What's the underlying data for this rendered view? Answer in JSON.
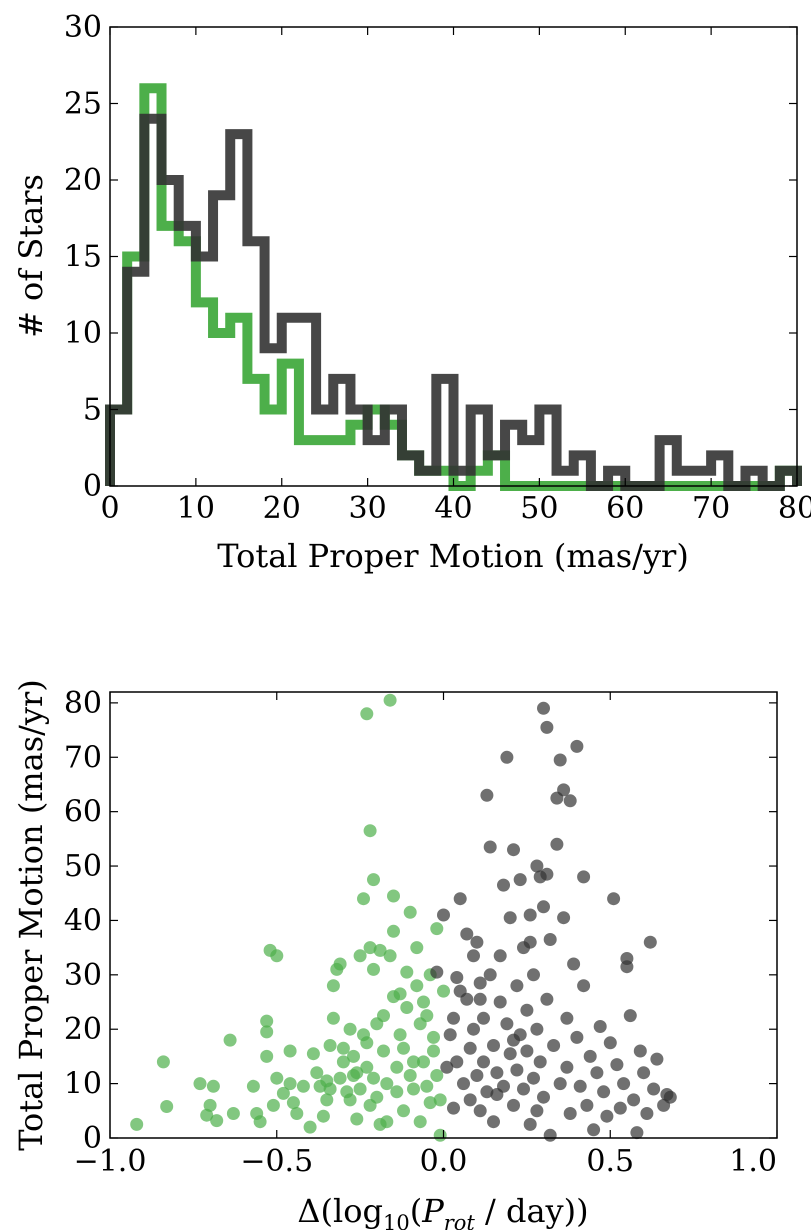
{
  "chart_data": [
    {
      "type": "histogram",
      "xlabel": "Total Proper Motion (mas/yr)",
      "ylabel": "# of Stars",
      "xlim": [
        0,
        80
      ],
      "ylim": [
        0,
        30
      ],
      "xticks": [
        "0",
        "10",
        "20",
        "30",
        "40",
        "50",
        "60",
        "70",
        "80"
      ],
      "yticks": [
        "0",
        "5",
        "10",
        "15",
        "20",
        "25",
        "30"
      ],
      "bin_edges": [
        0,
        2,
        4,
        6,
        8,
        10,
        12,
        14,
        16,
        18,
        20,
        22,
        24,
        26,
        28,
        30,
        32,
        34,
        36,
        38,
        40,
        42,
        44,
        46,
        48,
        50,
        52,
        54,
        56,
        58,
        60,
        62,
        64,
        66,
        68,
        70,
        72,
        74,
        76,
        78,
        80
      ],
      "series": [
        {
          "color": "#4daf4a",
          "alpha": 1.0,
          "values": [
            5,
            15,
            26,
            17,
            16,
            12,
            10,
            11,
            7,
            5,
            8,
            3,
            3,
            3,
            4,
            5,
            4,
            2,
            1,
            1,
            0,
            1,
            2,
            0,
            0,
            0,
            0,
            0,
            0,
            0,
            0,
            0,
            0,
            0,
            0,
            0,
            0,
            0,
            0,
            1
          ]
        },
        {
          "color": "#333333",
          "alpha": 0.9,
          "values": [
            5,
            14,
            24,
            20,
            17,
            15,
            19,
            23,
            16,
            9,
            11,
            11,
            5,
            7,
            5,
            3,
            5,
            2,
            1,
            7,
            1,
            5,
            2,
            4,
            3,
            5,
            1,
            2,
            0,
            1,
            0,
            0,
            3,
            1,
            1,
            2,
            0,
            1,
            0,
            1
          ]
        }
      ]
    },
    {
      "type": "scatter",
      "xlabel_prefix": "Δ(log",
      "xlabel_sub": "10",
      "xlabel_mid": "(",
      "xlabel_p": "P",
      "xlabel_psub": "rot",
      "xlabel_suffix": " / day))",
      "ylabel": "Total Proper Motion (mas/yr)",
      "xlim": [
        -1.0,
        1.0
      ],
      "ylim": [
        0,
        82
      ],
      "xticks": [
        {
          "value": -1.0,
          "label": "−1.0"
        },
        {
          "value": -0.5,
          "label": "−0.5"
        },
        {
          "value": 0.0,
          "label": "0.0"
        },
        {
          "value": 0.5,
          "label": "0.5"
        },
        {
          "value": 1.0,
          "label": "1.0"
        }
      ],
      "yticks": [
        {
          "value": 0,
          "label": "0"
        },
        {
          "value": 10,
          "label": "10"
        },
        {
          "value": 20,
          "label": "20"
        },
        {
          "value": 30,
          "label": "30"
        },
        {
          "value": 40,
          "label": "40"
        },
        {
          "value": 50,
          "label": "50"
        },
        {
          "value": 60,
          "label": "60"
        },
        {
          "value": 70,
          "label": "70"
        },
        {
          "value": 80,
          "label": "80"
        }
      ],
      "series": [
        {
          "color": "#4daf4a",
          "alpha": 0.7,
          "points": [
            [
              -0.92,
              2.5
            ],
            [
              -0.84,
              14
            ],
            [
              -0.83,
              5.8
            ],
            [
              -0.73,
              10
            ],
            [
              -0.71,
              4.2
            ],
            [
              -0.7,
              6
            ],
            [
              -0.69,
              9.5
            ],
            [
              -0.68,
              3.2
            ],
            [
              -0.64,
              18
            ],
            [
              -0.63,
              4.5
            ],
            [
              -0.57,
              9.5
            ],
            [
              -0.56,
              4.5
            ],
            [
              -0.55,
              3
            ],
            [
              -0.53,
              21.5
            ],
            [
              -0.53,
              19.5
            ],
            [
              -0.53,
              15
            ],
            [
              -0.52,
              34.5
            ],
            [
              -0.51,
              6
            ],
            [
              -0.5,
              11
            ],
            [
              -0.5,
              33.5
            ],
            [
              -0.48,
              8.2
            ],
            [
              -0.46,
              16
            ],
            [
              -0.46,
              10
            ],
            [
              -0.45,
              6.5
            ],
            [
              -0.44,
              4.5
            ],
            [
              -0.42,
              9.5
            ],
            [
              -0.4,
              2
            ],
            [
              -0.39,
              15.5
            ],
            [
              -0.38,
              12
            ],
            [
              -0.37,
              9.5
            ],
            [
              -0.36,
              4
            ],
            [
              -0.35,
              7
            ],
            [
              -0.35,
              10.5
            ],
            [
              -0.34,
              17
            ],
            [
              -0.33,
              22
            ],
            [
              -0.33,
              28
            ],
            [
              -0.32,
              31
            ],
            [
              -0.31,
              32
            ],
            [
              -0.31,
              11
            ],
            [
              -0.3,
              14
            ],
            [
              -0.29,
              8.5
            ],
            [
              -0.28,
              20
            ],
            [
              -0.28,
              7
            ],
            [
              -0.27,
              15
            ],
            [
              -0.26,
              3.5
            ],
            [
              -0.26,
              12
            ],
            [
              -0.25,
              33.5
            ],
            [
              -0.25,
              9
            ],
            [
              -0.24,
              44
            ],
            [
              -0.24,
              19
            ],
            [
              -0.23,
              17.5
            ],
            [
              -0.23,
              78
            ],
            [
              -0.23,
              13
            ],
            [
              -0.22,
              6
            ],
            [
              -0.22,
              35
            ],
            [
              -0.22,
              56.5
            ],
            [
              -0.21,
              47.5
            ],
            [
              -0.21,
              31
            ],
            [
              -0.21,
              11
            ],
            [
              -0.2,
              21
            ],
            [
              -0.2,
              7.5
            ],
            [
              -0.19,
              2.5
            ],
            [
              -0.19,
              34.5
            ],
            [
              -0.18,
              16
            ],
            [
              -0.17,
              3
            ],
            [
              -0.17,
              10
            ],
            [
              -0.16,
              33.5
            ],
            [
              -0.16,
              80.5
            ],
            [
              -0.15,
              44.5
            ],
            [
              -0.15,
              38
            ],
            [
              -0.15,
              26
            ],
            [
              -0.14,
              13
            ],
            [
              -0.14,
              8.5
            ],
            [
              -0.13,
              19
            ],
            [
              -0.12,
              5
            ],
            [
              -0.12,
              16.5
            ],
            [
              -0.11,
              30.5
            ],
            [
              -0.11,
              24
            ],
            [
              -0.1,
              41.5
            ],
            [
              -0.1,
              11.5
            ],
            [
              -0.09,
              9
            ],
            [
              -0.08,
              28
            ],
            [
              -0.08,
              35
            ],
            [
              -0.07,
              21
            ],
            [
              -0.07,
              3
            ],
            [
              -0.06,
              14
            ],
            [
              -0.05,
              9.5
            ],
            [
              -0.05,
              22.5
            ],
            [
              -0.04,
              30
            ],
            [
              -0.04,
              6.5
            ],
            [
              -0.03,
              16
            ],
            [
              -0.02,
              11.5
            ],
            [
              -0.02,
              38.5
            ],
            [
              -0.01,
              0.5
            ],
            [
              -0.01,
              7
            ],
            [
              0.0,
              27
            ],
            [
              -0.03,
              18.5
            ],
            [
              -0.06,
              25
            ],
            [
              -0.09,
              14
            ],
            [
              -0.13,
              26.5
            ],
            [
              -0.18,
              22.5
            ],
            [
              -0.27,
              11.5
            ],
            [
              -0.3,
              16.5
            ],
            [
              -0.34,
              9
            ]
          ]
        },
        {
          "color": "#333333",
          "alpha": 0.7,
          "points": [
            [
              0.01,
              13
            ],
            [
              0.02,
              19
            ],
            [
              0.03,
              5.5
            ],
            [
              0.04,
              14
            ],
            [
              0.05,
              44
            ],
            [
              0.05,
              27
            ],
            [
              0.06,
              10
            ],
            [
              0.07,
              25.5
            ],
            [
              0.08,
              7
            ],
            [
              0.08,
              16.5
            ],
            [
              0.09,
              33.5
            ],
            [
              0.09,
              20
            ],
            [
              0.1,
              36
            ],
            [
              0.1,
              11.5
            ],
            [
              0.11,
              5
            ],
            [
              0.11,
              28.5
            ],
            [
              0.12,
              14
            ],
            [
              0.12,
              22
            ],
            [
              0.13,
              8.5
            ],
            [
              0.13,
              63
            ],
            [
              0.14,
              30
            ],
            [
              0.15,
              3
            ],
            [
              0.15,
              17
            ],
            [
              0.16,
              12
            ],
            [
              0.17,
              25
            ],
            [
              0.17,
              33.5
            ],
            [
              0.18,
              46.5
            ],
            [
              0.18,
              9.5
            ],
            [
              0.19,
              70
            ],
            [
              0.19,
              21
            ],
            [
              0.2,
              15.5
            ],
            [
              0.2,
              40.5
            ],
            [
              0.21,
              53
            ],
            [
              0.21,
              6
            ],
            [
              0.22,
              12.5
            ],
            [
              0.22,
              28
            ],
            [
              0.23,
              19
            ],
            [
              0.23,
              47.5
            ],
            [
              0.24,
              35
            ],
            [
              0.24,
              9
            ],
            [
              0.25,
              16
            ],
            [
              0.25,
              23.5
            ],
            [
              0.26,
              2.5
            ],
            [
              0.26,
              41
            ],
            [
              0.27,
              30
            ],
            [
              0.27,
              11
            ],
            [
              0.28,
              50
            ],
            [
              0.28,
              20
            ],
            [
              0.29,
              48
            ],
            [
              0.29,
              14
            ],
            [
              0.3,
              42.5
            ],
            [
              0.3,
              79
            ],
            [
              0.3,
              7.5
            ],
            [
              0.31,
              75.5
            ],
            [
              0.31,
              25.5
            ],
            [
              0.32,
              0.5
            ],
            [
              0.32,
              36.5
            ],
            [
              0.33,
              17
            ],
            [
              0.34,
              62.5
            ],
            [
              0.34,
              54
            ],
            [
              0.35,
              69.5
            ],
            [
              0.35,
              10
            ],
            [
              0.36,
              64
            ],
            [
              0.36,
              40.5
            ],
            [
              0.37,
              22
            ],
            [
              0.37,
              13
            ],
            [
              0.38,
              62
            ],
            [
              0.38,
              4.5
            ],
            [
              0.39,
              32
            ],
            [
              0.4,
              72
            ],
            [
              0.4,
              18.5
            ],
            [
              0.41,
              9.5
            ],
            [
              0.42,
              48
            ],
            [
              0.42,
              28
            ],
            [
              0.43,
              6
            ],
            [
              0.44,
              15
            ],
            [
              0.45,
              1.5
            ],
            [
              0.46,
              12
            ],
            [
              0.47,
              20.5
            ],
            [
              0.48,
              8.5
            ],
            [
              0.49,
              4
            ],
            [
              0.5,
              17.5
            ],
            [
              0.51,
              44
            ],
            [
              0.52,
              13.5
            ],
            [
              0.53,
              5.5
            ],
            [
              0.54,
              10
            ],
            [
              0.55,
              31.5
            ],
            [
              0.55,
              33
            ],
            [
              0.56,
              22.5
            ],
            [
              0.57,
              7
            ],
            [
              0.58,
              1
            ],
            [
              0.59,
              16
            ],
            [
              0.6,
              12
            ],
            [
              0.61,
              4.5
            ],
            [
              0.62,
              36
            ],
            [
              0.63,
              9
            ],
            [
              0.64,
              14.5
            ],
            [
              0.66,
              6
            ],
            [
              0.67,
              8
            ],
            [
              0.68,
              7.5
            ],
            [
              -0.02,
              30.5
            ],
            [
              0.0,
              41
            ],
            [
              0.03,
              22
            ],
            [
              0.07,
              37.5
            ],
            [
              0.11,
              25.5
            ],
            [
              0.14,
              53.5
            ],
            [
              0.26,
              36
            ],
            [
              0.31,
              48.5
            ],
            [
              0.04,
              29.5
            ],
            [
              0.16,
              8
            ],
            [
              0.21,
              18
            ],
            [
              0.28,
              5
            ]
          ]
        }
      ]
    }
  ]
}
